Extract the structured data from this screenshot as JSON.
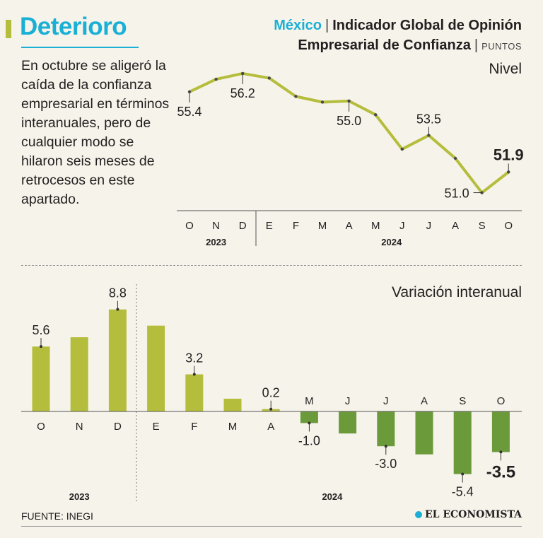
{
  "headline": "Deterioro",
  "intro": "En octubre se aligeró la caída de la confianza empresarial en términos interanuales, pero de cualquier modo se hilaron seis meses de retrocesos en este apartado.",
  "title": {
    "country": "México",
    "line1": "Indicador Global de Opinión",
    "line2": "Empresarial de Confianza",
    "units": "PUNTOS"
  },
  "source": "FUENTE: INEGI",
  "brand": "EL ECONOMISTA",
  "colors": {
    "accent": "#1ab0d6",
    "line": "#b5bd3c",
    "positive": "#b5bd3c",
    "negative": "#6b9a3b"
  },
  "chart_data": [
    {
      "type": "line",
      "title": "Nivel",
      "categories": [
        "O",
        "N",
        "D",
        "E",
        "F",
        "M",
        "A",
        "M",
        "J",
        "J",
        "A",
        "S",
        "O"
      ],
      "year_labels": [
        "2023",
        "2024"
      ],
      "values": [
        55.4,
        55.95,
        56.2,
        56.0,
        55.2,
        54.95,
        55.0,
        54.4,
        52.9,
        53.5,
        52.5,
        51.0,
        51.9
      ],
      "labels": [
        {
          "index": 0,
          "text": "55.4",
          "pos": "below"
        },
        {
          "index": 2,
          "text": "56.2",
          "pos": "below"
        },
        {
          "index": 6,
          "text": "55.0",
          "pos": "below"
        },
        {
          "index": 9,
          "text": "53.5",
          "pos": "above"
        },
        {
          "index": 11,
          "text": "51.0",
          "pos": "left"
        },
        {
          "index": 12,
          "text": "51.9",
          "pos": "above",
          "bold": true
        }
      ],
      "ylim": [
        50.4,
        57.0
      ]
    },
    {
      "type": "bar",
      "title": "Variación interanual",
      "categories": [
        "O",
        "N",
        "D",
        "E",
        "F",
        "M",
        "A",
        "M",
        "J",
        "J",
        "A",
        "S",
        "O"
      ],
      "year_labels": [
        "2023",
        "2024"
      ],
      "values": [
        5.6,
        6.4,
        8.8,
        7.4,
        3.2,
        1.1,
        0.2,
        -1.0,
        -1.9,
        -3.0,
        -3.7,
        -5.4,
        -3.5
      ],
      "labels": [
        {
          "index": 0,
          "text": "5.6"
        },
        {
          "index": 2,
          "text": "8.8"
        },
        {
          "index": 4,
          "text": "3.2"
        },
        {
          "index": 6,
          "text": "0.2"
        },
        {
          "index": 7,
          "text": "-1.0"
        },
        {
          "index": 9,
          "text": "-3.0"
        },
        {
          "index": 11,
          "text": "-5.4"
        },
        {
          "index": 12,
          "text": "-3.5",
          "bold": true
        }
      ],
      "ylim": [
        -6.5,
        10
      ]
    }
  ]
}
